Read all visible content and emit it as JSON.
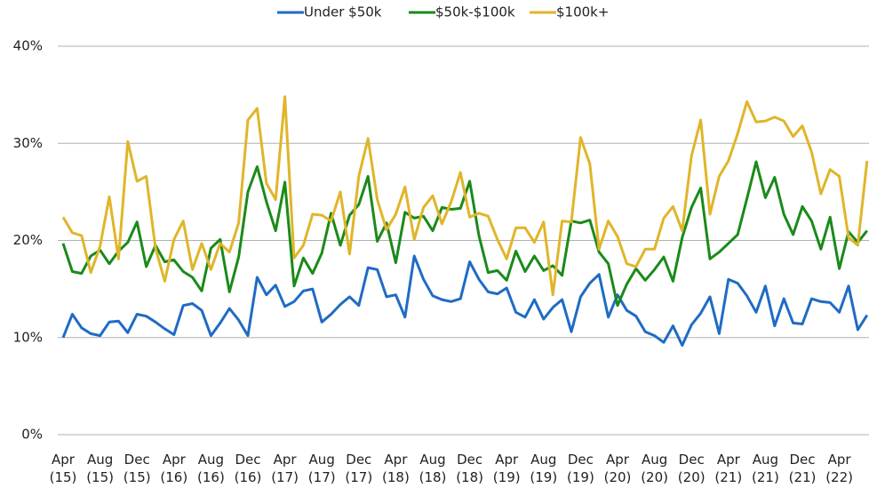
{
  "chart_data": {
    "type": "line",
    "categories": [
      "Apr (15)",
      null,
      null,
      null,
      "Aug (15)",
      null,
      null,
      null,
      "Dec (15)",
      null,
      null,
      null,
      "Apr (16)",
      null,
      null,
      null,
      "Aug (16)",
      null,
      null,
      null,
      "Dec (16)",
      null,
      null,
      null,
      "Apr (17)",
      null,
      null,
      null,
      "Aug (17)",
      null,
      null,
      null,
      "Dec (17)",
      null,
      null,
      null,
      "Apr (18)",
      null,
      null,
      null,
      "Aug (18)",
      null,
      null,
      null,
      "Dec (18)",
      null,
      null,
      null,
      "Apr (19)",
      null,
      null,
      null,
      "Aug (19)",
      null,
      null,
      null,
      "Dec (19)",
      null,
      null,
      null,
      "Apr (20)",
      null,
      null,
      null,
      "Aug (20)",
      null,
      null,
      null,
      "Dec (20)",
      null,
      null,
      null,
      "Apr (21)",
      null,
      null,
      null,
      "Aug (21)",
      null,
      null,
      null,
      "Dec (21)",
      null,
      null,
      null,
      "Apr (22)",
      null,
      null,
      null
    ],
    "series": [
      {
        "name": "Under $50k",
        "color": "#1f6bc4",
        "values": [
          10.0,
          12.4,
          11.0,
          10.4,
          10.2,
          11.6,
          11.7,
          10.5,
          12.4,
          12.2,
          11.6,
          10.9,
          10.3,
          13.3,
          13.5,
          12.8,
          10.2,
          11.5,
          13.0,
          11.8,
          10.2,
          16.2,
          14.4,
          15.4,
          13.2,
          13.7,
          14.8,
          15.0,
          11.6,
          12.4,
          13.4,
          14.2,
          13.3,
          17.2,
          17.0,
          14.2,
          14.4,
          12.1,
          18.4,
          16.0,
          14.3,
          13.9,
          13.7,
          14.0,
          17.8,
          16.0,
          14.7,
          14.5,
          15.1,
          12.6,
          12.1,
          13.9,
          11.9,
          13.1,
          13.9,
          10.6,
          14.2,
          15.6,
          16.5,
          12.1,
          14.4,
          12.8,
          12.2,
          10.6,
          10.2,
          9.5,
          11.2,
          9.2,
          11.3,
          12.5,
          14.2,
          10.4,
          16.0,
          15.6,
          14.3,
          12.6,
          15.3,
          11.2,
          14.0,
          11.5,
          11.4,
          14.0,
          13.7,
          13.6,
          12.6,
          15.3,
          10.8,
          12.3
        ]
      },
      {
        "name": "$50k-$100k",
        "color": "#1a8a1a",
        "values": [
          19.7,
          16.8,
          16.6,
          18.4,
          19.0,
          17.6,
          18.9,
          19.8,
          21.9,
          17.3,
          19.5,
          17.8,
          18.0,
          16.8,
          16.2,
          14.8,
          19.2,
          20.1,
          14.7,
          18.3,
          25.0,
          27.6,
          24.0,
          21.0,
          26.0,
          15.3,
          18.2,
          16.6,
          18.7,
          22.8,
          19.5,
          22.6,
          23.7,
          26.6,
          19.9,
          21.8,
          17.7,
          22.9,
          22.3,
          22.5,
          21.0,
          23.4,
          23.2,
          23.3,
          26.1,
          20.5,
          16.7,
          16.9,
          15.9,
          18.9,
          16.8,
          18.4,
          16.9,
          17.4,
          16.4,
          22.0,
          21.8,
          22.1,
          18.8,
          17.6,
          13.3,
          15.5,
          17.1,
          15.9,
          17.0,
          18.3,
          15.8,
          20.3,
          23.4,
          25.4,
          18.1,
          18.8,
          19.7,
          20.6,
          24.3,
          28.1,
          24.4,
          26.5,
          22.7,
          20.6,
          23.5,
          22.0,
          19.1,
          22.4,
          17.1,
          20.9,
          19.8,
          21.0
        ]
      },
      {
        "name": "$100k+",
        "color": "#e0b52a",
        "values": [
          22.4,
          20.8,
          20.5,
          16.7,
          19.4,
          24.5,
          18.1,
          30.2,
          26.1,
          26.6,
          19.2,
          15.8,
          20.1,
          22.0,
          17.0,
          19.7,
          17.0,
          19.7,
          18.8,
          21.8,
          32.4,
          33.6,
          25.9,
          24.2,
          34.8,
          18.2,
          19.5,
          22.7,
          22.6,
          22.0,
          25.0,
          18.6,
          26.6,
          30.5,
          24.2,
          21.1,
          22.7,
          25.5,
          20.1,
          23.4,
          24.6,
          21.7,
          24.0,
          27.0,
          22.4,
          22.8,
          22.5,
          20.1,
          18.1,
          21.3,
          21.3,
          19.8,
          21.9,
          14.4,
          22.0,
          21.9,
          30.6,
          27.9,
          19.1,
          22.0,
          20.4,
          17.6,
          17.3,
          19.1,
          19.1,
          22.3,
          23.5,
          21.0,
          28.7,
          32.4,
          22.7,
          26.6,
          28.2,
          31.0,
          34.3,
          32.2,
          32.3,
          32.7,
          32.3,
          30.7,
          31.8,
          29.1,
          24.8,
          27.3,
          26.6,
          20.3,
          19.5,
          28.2
        ]
      }
    ],
    "ylim": [
      0,
      40
    ],
    "yticks": [
      {
        "value": 0,
        "label": "0%"
      },
      {
        "value": 10,
        "label": "10%"
      },
      {
        "value": 20,
        "label": "20%"
      },
      {
        "value": 30,
        "label": "30%"
      },
      {
        "value": 40,
        "label": "40%"
      }
    ],
    "grid": true,
    "legend": "top"
  }
}
